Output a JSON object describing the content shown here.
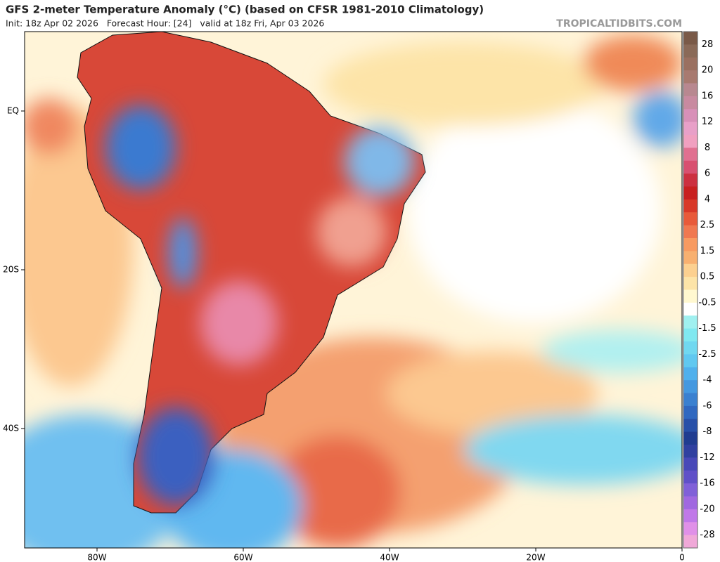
{
  "header": {
    "title": "GFS 2-meter Temperature Anomaly (°C) (based on CFSR 1981-2010 Climatology)",
    "subtitle": "Init: 18z Apr 02 2026   Forecast Hour: [24]   valid at 18z Fri, Apr 03 2026",
    "site": "TROPICALTIDBITS.COM"
  },
  "map": {
    "lon_labels": [
      "80W",
      "60W",
      "40W",
      "20W",
      "0"
    ],
    "lat_labels": [
      "EQ",
      "20S",
      "40S"
    ]
  },
  "colorbar": {
    "labels": [
      "28",
      "20",
      "16",
      "12",
      "8",
      "6",
      "4",
      "2.5",
      "1.5",
      "0.5",
      "-0.5",
      "-1.5",
      "-2.5",
      "-4",
      "-6",
      "-8",
      "-12",
      "-16",
      "-20",
      "-28"
    ],
    "colors": [
      "#7a5a48",
      "#8a6a58",
      "#9a7060",
      "#a87a70",
      "#b88890",
      "#c88aa0",
      "#d890b8",
      "#e8a0c8",
      "#f0a0c0",
      "#e07090",
      "#d85070",
      "#cc3040",
      "#c82020",
      "#d83828",
      "#e85a3a",
      "#f07850",
      "#f89a60",
      "#f8b070",
      "#fcd090",
      "#fde4a8",
      "#fff8d0",
      "#ffffff",
      "#a0f0f0",
      "#80e8f0",
      "#70d8f0",
      "#60c8f0",
      "#50b0ec",
      "#4498e0",
      "#3a80d0",
      "#3068c0",
      "#2850a8",
      "#203c90",
      "#3040a0",
      "#4848b8",
      "#6050c8",
      "#8060d8",
      "#a068e0",
      "#c078e8",
      "#e090e8",
      "#f0a8d8"
    ]
  }
}
